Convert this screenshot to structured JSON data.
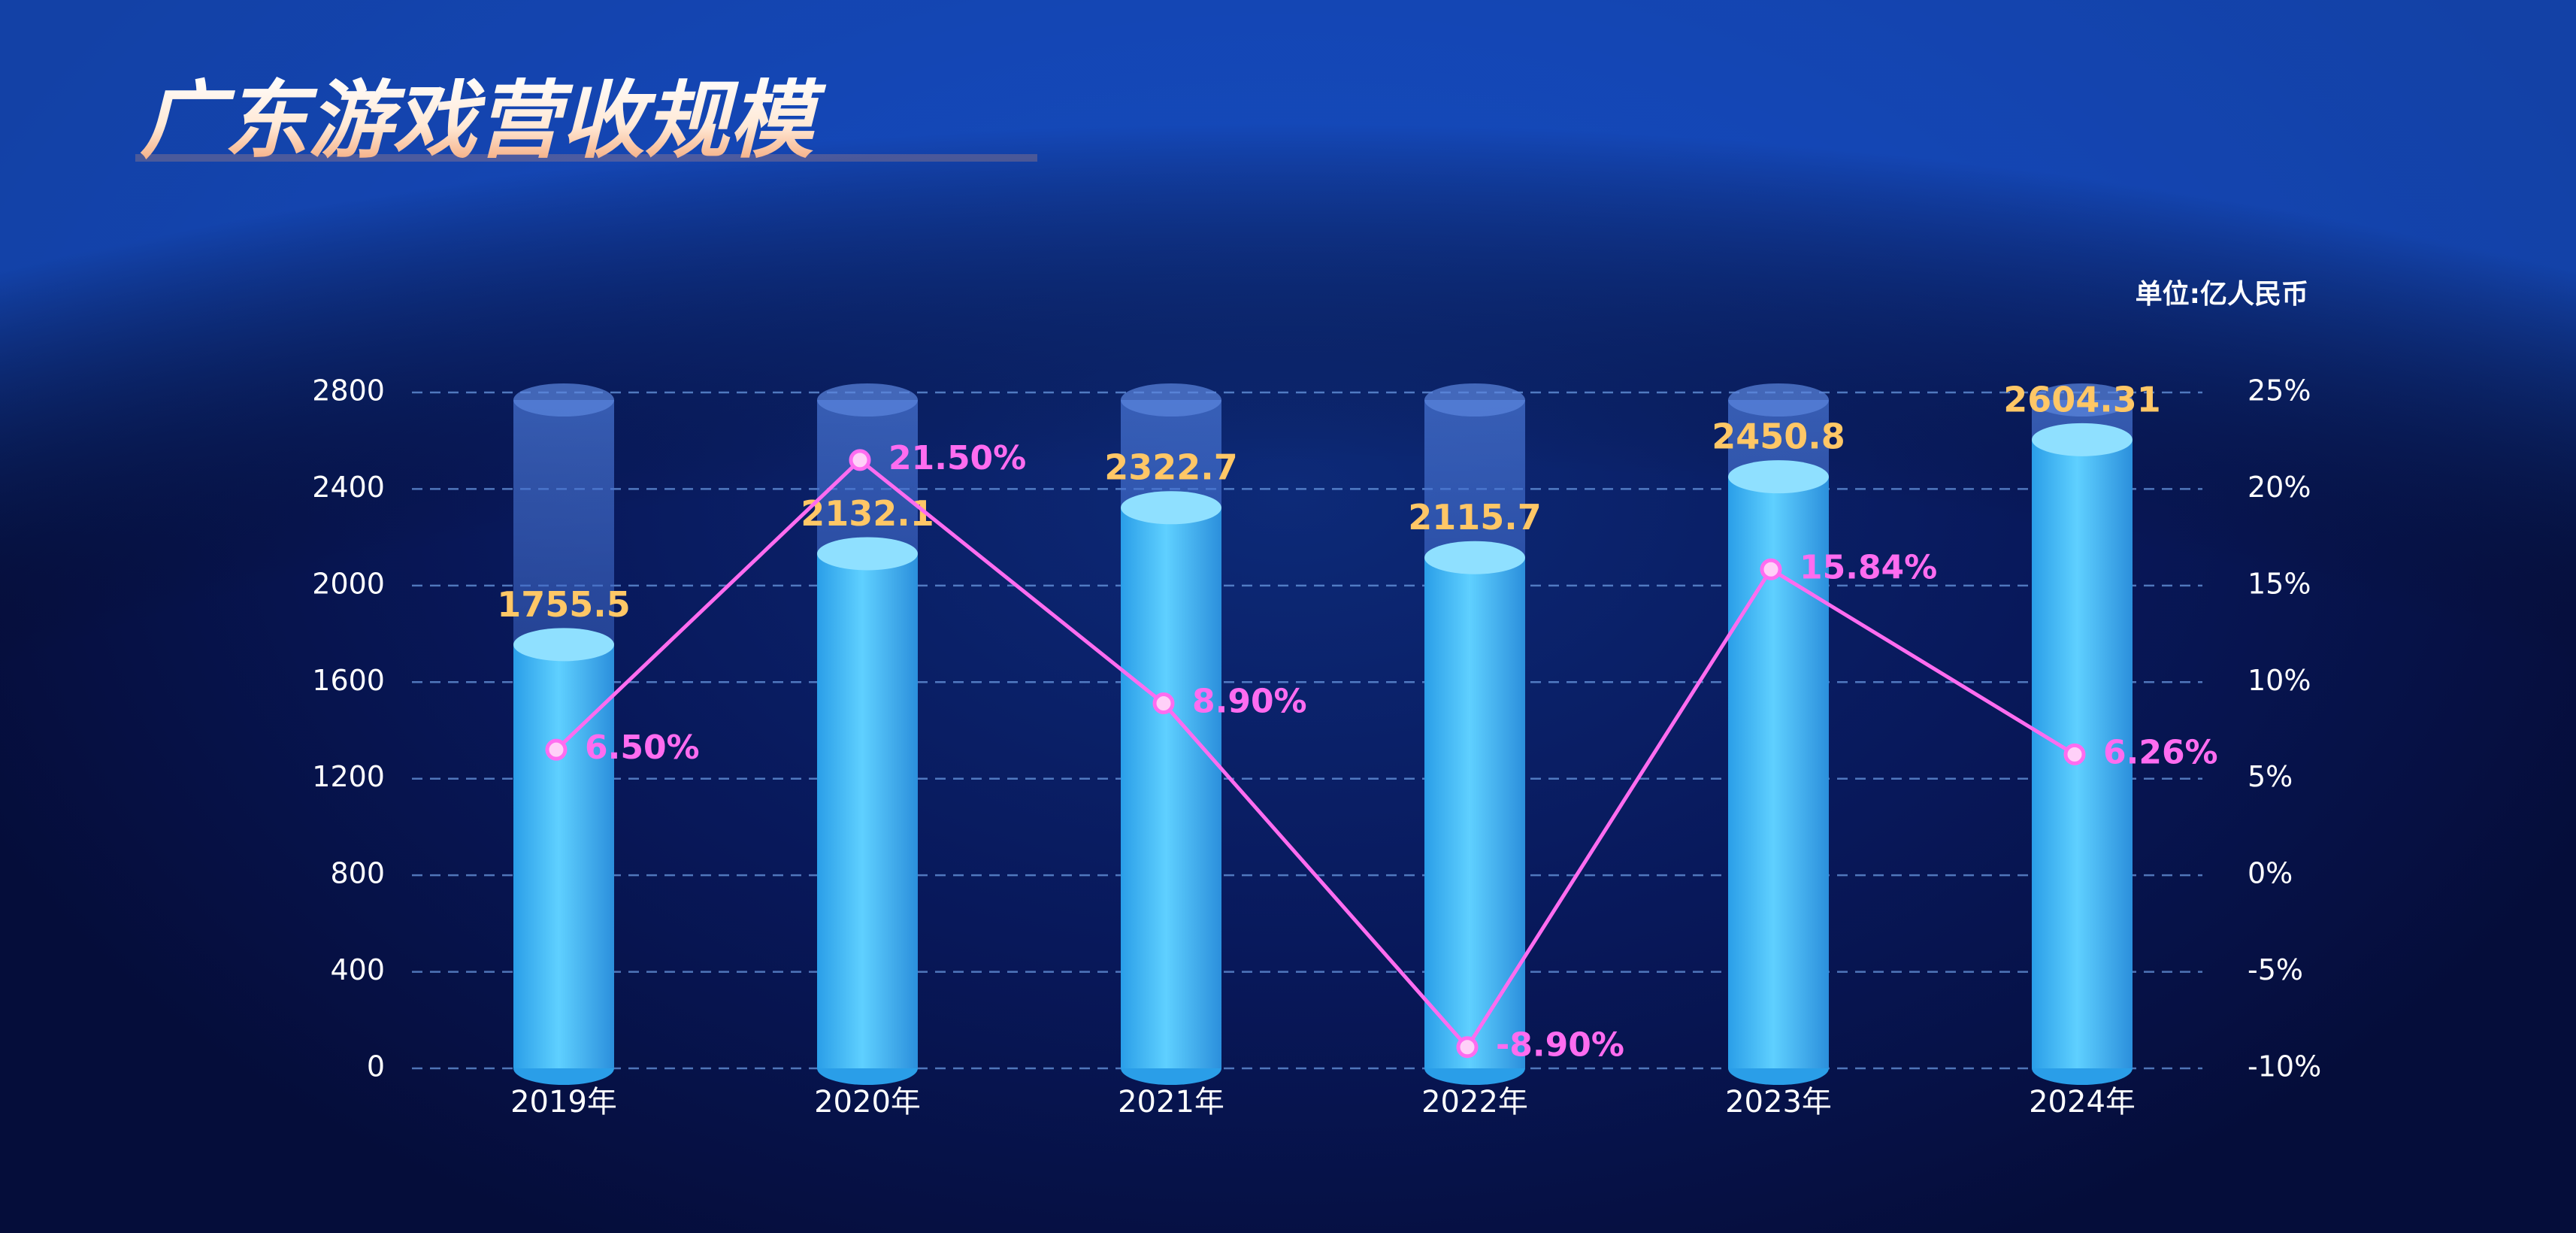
{
  "chart_data": {
    "type": "bar",
    "title": "广东游戏营收规模",
    "unit_label": "单位:亿人民币",
    "categories": [
      "2019年",
      "2020年",
      "2021年",
      "2022年",
      "2023年",
      "2024年"
    ],
    "series": [
      {
        "type": "bar",
        "color": "#3cb6f5",
        "values": [
          1755.5,
          2132.1,
          2322.7,
          2115.7,
          2450.8,
          2604.31
        ]
      },
      {
        "type": "line",
        "axis": "y2",
        "color": "#ff6cf0",
        "values": [
          6.5,
          21.5,
          8.9,
          -8.9,
          15.84,
          6.26
        ],
        "value_labels": [
          "6.50%",
          "21.50%",
          "8.90%",
          "-8.90%",
          "15.84%",
          "6.26%"
        ]
      }
    ],
    "ylim": [
      0,
      2800
    ],
    "yticks": [
      0,
      400,
      800,
      1200,
      1600,
      2000,
      2400,
      2800
    ],
    "y2lim": [
      -10,
      25
    ],
    "y2ticks": [
      {
        "value": -10,
        "label": "-10%"
      },
      {
        "value": -5,
        "label": "-5%"
      },
      {
        "value": 0,
        "label": "0%"
      },
      {
        "value": 5,
        "label": "5%"
      },
      {
        "value": 10,
        "label": "10%"
      },
      {
        "value": 15,
        "label": "15%"
      },
      {
        "value": 20,
        "label": "20%"
      },
      {
        "value": 25,
        "label": "25%"
      }
    ],
    "grid": true
  }
}
